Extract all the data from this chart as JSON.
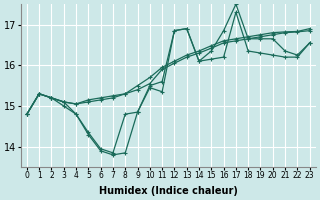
{
  "xlabel": "Humidex (Indice chaleur)",
  "ylabel": "",
  "background_color": "#cde8e8",
  "grid_color": "#ffffff",
  "line_color": "#1a6b5a",
  "xlim": [
    -0.5,
    23.5
  ],
  "ylim": [
    13.5,
    17.5
  ],
  "yticks": [
    14,
    15,
    16,
    17
  ],
  "xtick_labels": [
    "0",
    "1",
    "2",
    "3",
    "4",
    "5",
    "6",
    "7",
    "8",
    "9",
    "10",
    "11",
    "12",
    "13",
    "14",
    "15",
    "16",
    "17",
    "18",
    "19",
    "20",
    "21",
    "22",
    "23"
  ],
  "series": [
    [
      14.8,
      15.3,
      15.2,
      15.0,
      14.8,
      14.3,
      13.9,
      13.8,
      13.85,
      14.85,
      15.45,
      15.35,
      16.85,
      16.9,
      16.1,
      16.15,
      16.2,
      17.3,
      16.35,
      16.3,
      16.25,
      16.2,
      16.2,
      16.55
    ],
    [
      14.8,
      15.3,
      15.2,
      15.1,
      15.05,
      15.15,
      15.2,
      15.25,
      15.3,
      15.4,
      15.55,
      15.9,
      16.05,
      16.2,
      16.3,
      16.42,
      16.55,
      16.6,
      16.65,
      16.7,
      16.75,
      16.8,
      16.82,
      16.85
    ],
    [
      14.8,
      15.3,
      15.2,
      15.1,
      15.05,
      15.1,
      15.15,
      15.2,
      15.3,
      15.5,
      15.7,
      15.95,
      16.1,
      16.25,
      16.35,
      16.48,
      16.6,
      16.65,
      16.7,
      16.75,
      16.8,
      16.82,
      16.83,
      16.9
    ],
    [
      14.8,
      15.3,
      15.2,
      15.1,
      14.8,
      14.35,
      13.95,
      13.85,
      14.8,
      14.85,
      15.5,
      15.6,
      16.85,
      16.9,
      16.1,
      16.35,
      16.85,
      17.5,
      16.65,
      16.65,
      16.65,
      16.35,
      16.25,
      16.55
    ]
  ]
}
